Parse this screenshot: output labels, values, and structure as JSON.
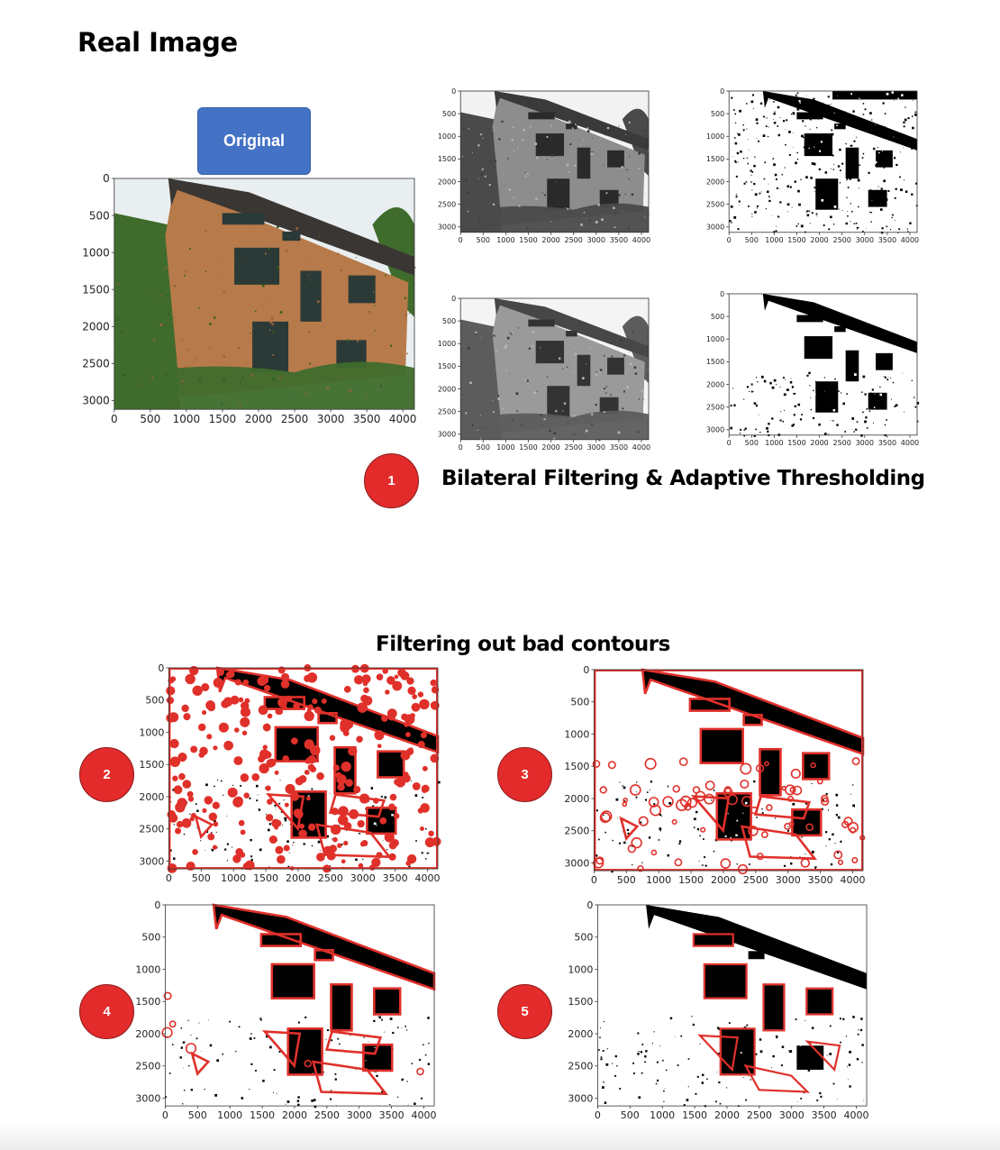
{
  "heading": "Real Image",
  "original_label": "Original",
  "step1": {
    "number": "1",
    "caption": "Bilateral Filtering & Adaptive Thresholding"
  },
  "section2_caption": "Filtering out bad contours",
  "steps": {
    "s2": "2",
    "s3": "3",
    "s4": "4",
    "s5": "5"
  },
  "axes": {
    "x_ticks": [
      "0",
      "500",
      "1000",
      "1500",
      "2000",
      "2500",
      "3000",
      "3500",
      "4000"
    ],
    "y_ticks": [
      "0",
      "500",
      "1000",
      "1500",
      "2000",
      "2500",
      "3000"
    ],
    "x_max": 4160,
    "y_max": 3120
  },
  "colors": {
    "badge": "#e32b2b",
    "button": "#4472c4",
    "contour": "#e0302a"
  },
  "panels": [
    {
      "name": "original-plot",
      "style": "color"
    },
    {
      "name": "bilateral-plot-1",
      "style": "gray"
    },
    {
      "name": "adaptive-threshold-plot-1",
      "style": "thresh-noisy"
    },
    {
      "name": "bilateral-plot-2",
      "style": "gray-soft"
    },
    {
      "name": "adaptive-threshold-plot-2",
      "style": "thresh"
    },
    {
      "name": "contours-plot-2",
      "style": "contours-all"
    },
    {
      "name": "contours-plot-3",
      "style": "contours-mid"
    },
    {
      "name": "contours-plot-4",
      "style": "contours-few"
    },
    {
      "name": "contours-plot-5",
      "style": "contours-final"
    }
  ]
}
